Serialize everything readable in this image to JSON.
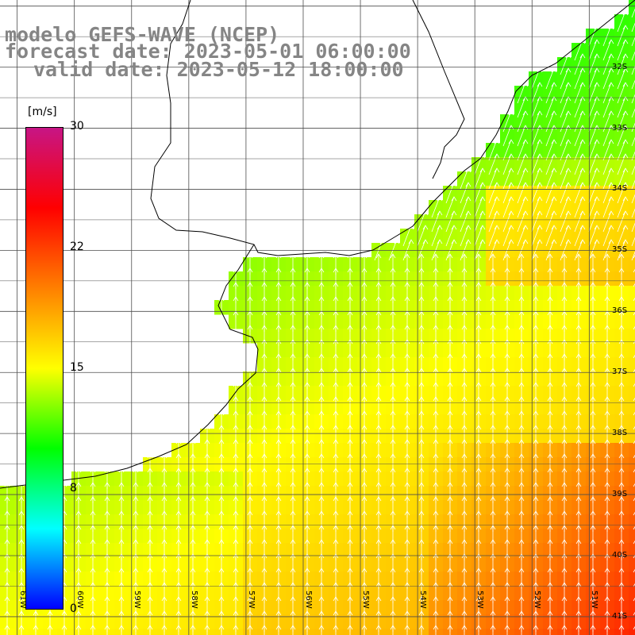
{
  "titles": {
    "line1": "modelo GEFS-WAVE (NCEP)",
    "line2": "forecast date: 2023-05-01 06:00:00",
    "line3": "valid date: 2023-05-12 18:00:00"
  },
  "colorbar": {
    "unit": "[m/s]",
    "ticks": [
      "30",
      "22",
      "15",
      "8",
      "0"
    ],
    "range": [
      0,
      30
    ],
    "stops": [
      "#0000ff",
      "#00ffff",
      "#00ff00",
      "#ffff00",
      "#ff7f00",
      "#ff0000",
      "#c71585"
    ]
  },
  "map": {
    "lon_range": [
      -61.3,
      -50.2
    ],
    "lat_range": [
      -41.3,
      -30.9
    ],
    "lat_labels": [
      "32S",
      "33S",
      "34S",
      "35S",
      "36S",
      "37S",
      "38S",
      "39S",
      "40S",
      "41S"
    ],
    "lon_labels": [
      "61W",
      "60W",
      "59W",
      "58W",
      "57W",
      "56W",
      "55W",
      "54W",
      "53W",
      "52W",
      "51W"
    ],
    "wind_direction": "northward",
    "field": "wind speed (m/s)"
  },
  "colors": {
    "land": "#ffffff",
    "coast": "#000000",
    "grid": "#4d4d4d",
    "arrow": "#ffffff",
    "title": "#858585"
  }
}
